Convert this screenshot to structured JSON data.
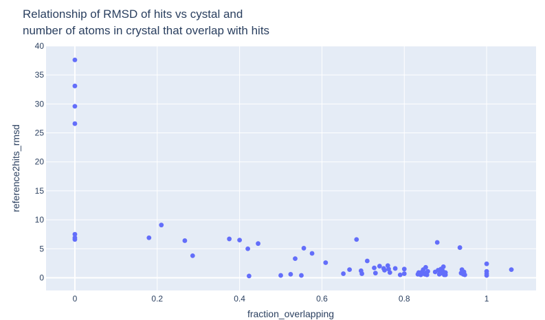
{
  "chart_data": {
    "type": "scatter",
    "title": [
      "Relationship of RMSD of hits vs cystal and",
      "number of atoms in crystal that overlap with hits"
    ],
    "xlabel": "fraction_overlapping",
    "ylabel": "reference2hits_rmsd",
    "xlim": [
      -0.07,
      1.12
    ],
    "ylim": [
      -2.2,
      40
    ],
    "xticks": [
      0,
      0.2,
      0.4,
      0.6,
      0.8,
      1
    ],
    "xtick_labels": [
      "0",
      "0.2",
      "0.4",
      "0.6",
      "0.8",
      "1"
    ],
    "yticks": [
      0,
      5,
      10,
      15,
      20,
      25,
      30,
      35,
      40
    ],
    "ytick_labels": [
      "0",
      "5",
      "10",
      "15",
      "20",
      "25",
      "30",
      "35",
      "40"
    ],
    "grid": true,
    "colors": {
      "marker": "#636efa",
      "plot_bg": "#e5ecf6",
      "grid": "#ffffff",
      "text": "#2a3f5f"
    },
    "points": [
      [
        0,
        37.6
      ],
      [
        0,
        33.1
      ],
      [
        0,
        29.6
      ],
      [
        0,
        26.6
      ],
      [
        0,
        7.5
      ],
      [
        0,
        6.9
      ],
      [
        0,
        6.6
      ],
      [
        0.18,
        6.9
      ],
      [
        0.21,
        9.1
      ],
      [
        0.267,
        6.4
      ],
      [
        0.286,
        3.8
      ],
      [
        0.375,
        6.7
      ],
      [
        0.4,
        6.5
      ],
      [
        0.42,
        5.0
      ],
      [
        0.423,
        0.3
      ],
      [
        0.445,
        5.9
      ],
      [
        0.5,
        0.4
      ],
      [
        0.524,
        0.6
      ],
      [
        0.535,
        3.3
      ],
      [
        0.55,
        0.4
      ],
      [
        0.556,
        5.1
      ],
      [
        0.576,
        4.2
      ],
      [
        0.609,
        2.6
      ],
      [
        0.652,
        0.7
      ],
      [
        0.667,
        1.4
      ],
      [
        0.684,
        6.6
      ],
      [
        0.695,
        1.2
      ],
      [
        0.697,
        0.7
      ],
      [
        0.71,
        2.9
      ],
      [
        0.727,
        1.7
      ],
      [
        0.73,
        0.8
      ],
      [
        0.74,
        2.0
      ],
      [
        0.75,
        1.6
      ],
      [
        0.752,
        1.3
      ],
      [
        0.76,
        2.1
      ],
      [
        0.762,
        1.5
      ],
      [
        0.765,
        0.9
      ],
      [
        0.778,
        1.6
      ],
      [
        0.79,
        0.5
      ],
      [
        0.8,
        1.5
      ],
      [
        0.8,
        0.7
      ],
      [
        0.833,
        0.6
      ],
      [
        0.835,
        0.9
      ],
      [
        0.84,
        0.5
      ],
      [
        0.843,
        1.0
      ],
      [
        0.846,
        1.4
      ],
      [
        0.85,
        0.6
      ],
      [
        0.852,
        1.8
      ],
      [
        0.853,
        0.8
      ],
      [
        0.855,
        0.5
      ],
      [
        0.857,
        1.1
      ],
      [
        0.875,
        1.0
      ],
      [
        0.88,
        6.1
      ],
      [
        0.882,
        1.3
      ],
      [
        0.885,
        0.6
      ],
      [
        0.889,
        1.5
      ],
      [
        0.89,
        0.8
      ],
      [
        0.893,
        1.2
      ],
      [
        0.895,
        1.9
      ],
      [
        0.897,
        0.5
      ],
      [
        0.9,
        0.5
      ],
      [
        0.9,
        0.9
      ],
      [
        0.935,
        5.2
      ],
      [
        0.938,
        0.8
      ],
      [
        0.94,
        1.4
      ],
      [
        0.943,
        0.6
      ],
      [
        0.945,
        1.0
      ],
      [
        0.947,
        0.5
      ],
      [
        1.0,
        2.4
      ],
      [
        1.0,
        1.1
      ],
      [
        1.0,
        0.7
      ],
      [
        1.0,
        0.4
      ],
      [
        1.06,
        1.4
      ]
    ]
  }
}
